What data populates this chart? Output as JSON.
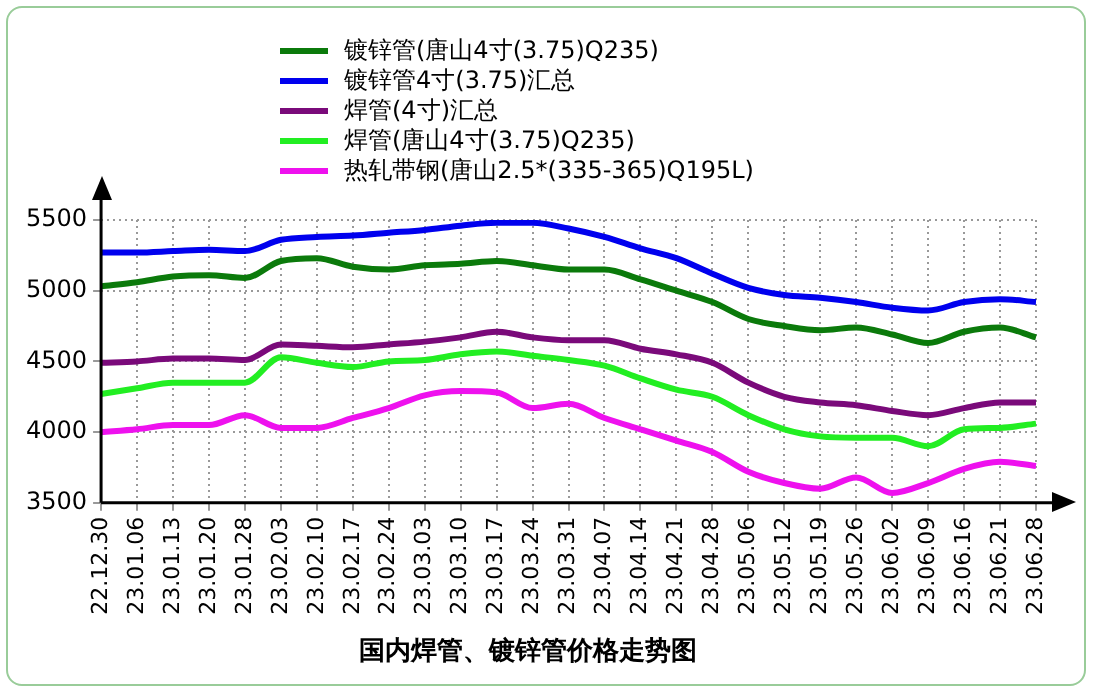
{
  "chart_data": {
    "type": "line",
    "title": "国内焊管、镀锌管价格走势图",
    "categories": [
      "22.12.30",
      "23.01.06",
      "23.01.13",
      "23.01.20",
      "23.01.28",
      "23.02.03",
      "23.02.10",
      "23.02.17",
      "23.02.24",
      "23.03.03",
      "23.03.10",
      "23.03.17",
      "23.03.24",
      "23.03.31",
      "23.04.07",
      "23.04.14",
      "23.04.21",
      "23.04.28",
      "23.05.06",
      "23.05.12",
      "23.05.19",
      "23.05.26",
      "23.06.02",
      "23.06.09",
      "23.06.16",
      "23.06.21",
      "23.06.28"
    ],
    "series": [
      {
        "name": "镀锌管(唐山4寸(3.75)Q235)",
        "color": "#0b7a0b",
        "values": [
          5030,
          5060,
          5100,
          5110,
          5090,
          5210,
          5230,
          5170,
          5150,
          5180,
          5190,
          5210,
          5180,
          5150,
          5150,
          5080,
          5000,
          4920,
          4800,
          4750,
          4720,
          4740,
          4690,
          4630,
          4710,
          4740,
          4670
        ]
      },
      {
        "name": "镀锌管4寸(3.75)汇总",
        "color": "#0000ee",
        "values": [
          5270,
          5270,
          5280,
          5290,
          5280,
          5360,
          5380,
          5390,
          5410,
          5430,
          5460,
          5480,
          5480,
          5440,
          5380,
          5300,
          5230,
          5120,
          5020,
          4970,
          4950,
          4920,
          4880,
          4860,
          4920,
          4940,
          4920
        ]
      },
      {
        "name": "焊管(4寸)汇总",
        "color": "#7a0a7a",
        "values": [
          4490,
          4500,
          4520,
          4520,
          4510,
          4620,
          4610,
          4600,
          4620,
          4640,
          4670,
          4710,
          4670,
          4650,
          4650,
          4590,
          4550,
          4490,
          4350,
          4250,
          4210,
          4190,
          4150,
          4120,
          4170,
          4210,
          4210
        ]
      },
      {
        "name": "焊管(唐山4寸(3.75)Q235)",
        "color": "#22ee22",
        "values": [
          4270,
          4310,
          4350,
          4350,
          4350,
          4530,
          4490,
          4460,
          4500,
          4510,
          4550,
          4570,
          4540,
          4510,
          4470,
          4380,
          4300,
          4250,
          4120,
          4020,
          3970,
          3960,
          3960,
          3900,
          4020,
          4030,
          4060
        ]
      },
      {
        "name": "热轧带钢(唐山2.5*(335-365)Q195L)",
        "color": "#ee11ee",
        "values": [
          4000,
          4020,
          4050,
          4050,
          4120,
          4030,
          4030,
          4100,
          4170,
          4260,
          4290,
          4280,
          4170,
          4200,
          4100,
          4020,
          3940,
          3860,
          3720,
          3640,
          3600,
          3680,
          3570,
          3640,
          3740,
          3790,
          3760
        ]
      }
    ],
    "ylim": [
      3500,
      5500
    ],
    "yticks": [
      3500,
      4000,
      4500,
      5000,
      5500
    ],
    "grid": true,
    "legend": "top",
    "marker": "none",
    "line_style": "solid"
  }
}
